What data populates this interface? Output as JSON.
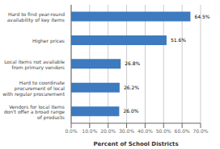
{
  "chart_data": {
    "type": "bar",
    "orientation": "horizontal",
    "categories": [
      "Vendors for local items\ndon't offer a broad range\nof products",
      "Hard to coordinate\nprocurement of local\nwith regular procurement",
      "Local items not available\nfrom primary vendors",
      "Higher prices",
      "Hard to find year-round\navailability of key items"
    ],
    "values": [
      26.0,
      26.2,
      26.8,
      51.6,
      64.5
    ],
    "value_labels": [
      "26.0%",
      "26.2%",
      "26.8%",
      "51.6%",
      "64.5%"
    ],
    "color": "#3d7abf",
    "xlabel": "Percent of School Districts",
    "xlim": [
      0,
      70
    ],
    "xticks": [
      {
        "value": 0,
        "label": "0.0%"
      },
      {
        "value": 10,
        "label": "10.0%"
      },
      {
        "value": 20,
        "label": "20.0%"
      },
      {
        "value": 30,
        "label": "30.0%"
      },
      {
        "value": 40,
        "label": "40.0%"
      },
      {
        "value": 50,
        "label": "50.0%"
      },
      {
        "value": 60,
        "label": "60.0%"
      },
      {
        "value": 70,
        "label": "70.0%"
      }
    ],
    "grid": true,
    "data_labels": true
  }
}
